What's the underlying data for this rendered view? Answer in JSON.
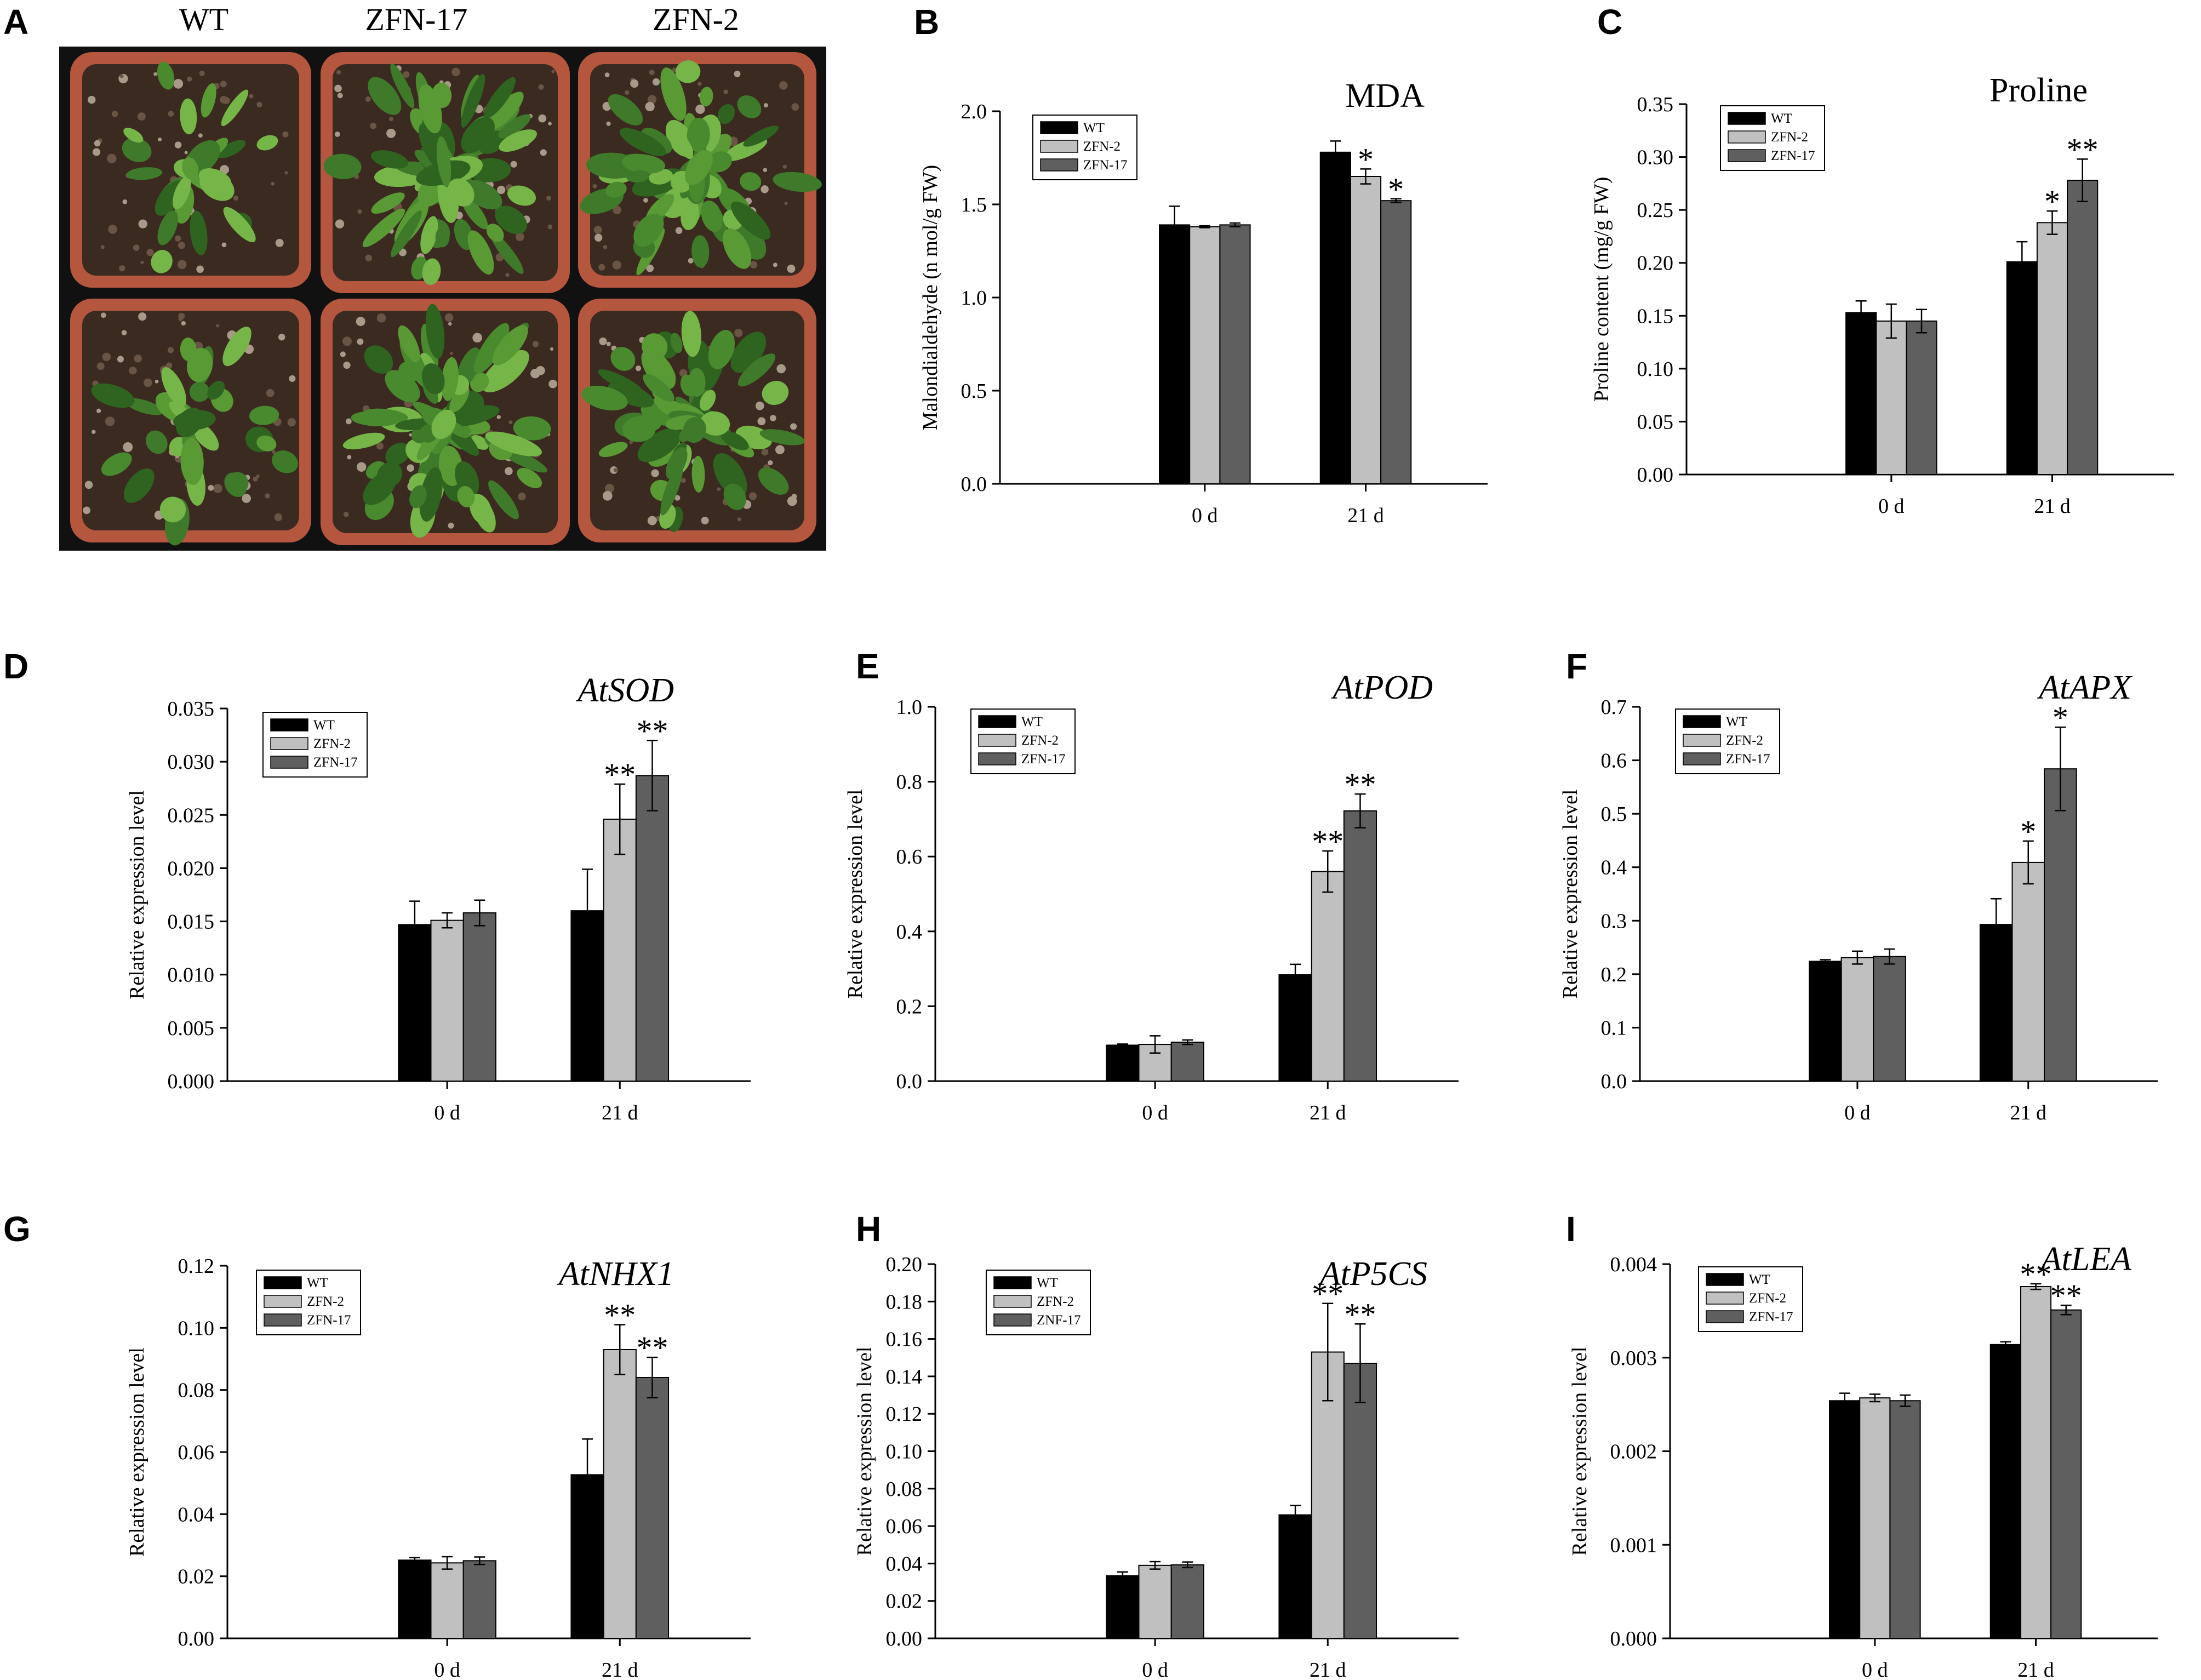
{
  "photo": {
    "panel": "A",
    "labels": [
      "WT",
      "ZFN-17",
      "ZFN-2"
    ]
  },
  "chart_data": [
    {
      "panel": "B",
      "type": "bar",
      "title": "MDA",
      "title_italic": false,
      "xlabel": "",
      "ylabel": "Malondialdehyde (n mol/g FW)",
      "categories": [
        "0 d",
        "21 d"
      ],
      "ylim": [
        0,
        2.0
      ],
      "yticks": [
        "0.0",
        "0.5",
        "1.0",
        "1.5",
        "2.0"
      ],
      "legend_position": "top-left",
      "series": [
        {
          "name": "WT",
          "color": "#000000",
          "values": [
            1.39,
            1.78
          ],
          "errors": [
            0.1,
            0.06
          ],
          "sig": [
            "",
            ""
          ]
        },
        {
          "name": "ZFN-2",
          "color": "#c0c0c0",
          "values": [
            1.38,
            1.65
          ],
          "errors": [
            0.005,
            0.04
          ],
          "sig": [
            "",
            "*"
          ]
        },
        {
          "name": "ZFN-17",
          "color": "#5f5f5f",
          "values": [
            1.39,
            1.52
          ],
          "errors": [
            0.01,
            0.01
          ],
          "sig": [
            "",
            "*"
          ]
        }
      ]
    },
    {
      "panel": "C",
      "type": "bar",
      "title": "Proline",
      "title_italic": false,
      "xlabel": "",
      "ylabel": "Proline content (mg/g FW)",
      "categories": [
        "0 d",
        "21 d"
      ],
      "ylim": [
        0,
        0.35
      ],
      "yticks": [
        "0.00",
        "0.05",
        "0.10",
        "0.15",
        "0.20",
        "0.25",
        "0.30",
        "0.35"
      ],
      "legend_position": "top-left",
      "series": [
        {
          "name": "WT",
          "color": "#000000",
          "values": [
            0.153,
            0.201
          ],
          "errors": [
            0.011,
            0.019
          ],
          "sig": [
            "",
            ""
          ]
        },
        {
          "name": "ZFN-2",
          "color": "#c0c0c0",
          "values": [
            0.145,
            0.238
          ],
          "errors": [
            0.016,
            0.011
          ],
          "sig": [
            "",
            "*"
          ]
        },
        {
          "name": "ZFN-17",
          "color": "#5f5f5f",
          "values": [
            0.145,
            0.278
          ],
          "errors": [
            0.011,
            0.02
          ],
          "sig": [
            "",
            "**"
          ]
        }
      ]
    },
    {
      "panel": "D",
      "type": "bar",
      "title": "AtSOD",
      "title_italic": true,
      "xlabel": "",
      "ylabel": "Relative expression level",
      "categories": [
        "0 d",
        "21 d"
      ],
      "ylim": [
        0,
        0.035
      ],
      "yticks": [
        "0.000",
        "0.005",
        "0.010",
        "0.015",
        "0.020",
        "0.025",
        "0.030",
        "0.035"
      ],
      "legend_position": "top-left",
      "series": [
        {
          "name": "WT",
          "color": "#000000",
          "values": [
            0.0147,
            0.016
          ],
          "errors": [
            0.0022,
            0.0039
          ],
          "sig": [
            "",
            ""
          ]
        },
        {
          "name": "ZFN-2",
          "color": "#c0c0c0",
          "values": [
            0.0151,
            0.0246
          ],
          "errors": [
            0.0007,
            0.0033
          ],
          "sig": [
            "",
            "**"
          ]
        },
        {
          "name": "ZFN-17",
          "color": "#5f5f5f",
          "values": [
            0.0158,
            0.0287
          ],
          "errors": [
            0.0012,
            0.0033
          ],
          "sig": [
            "",
            "**"
          ]
        }
      ]
    },
    {
      "panel": "E",
      "type": "bar",
      "title": "AtPOD",
      "title_italic": true,
      "xlabel": "",
      "ylabel": "Relative expression level",
      "categories": [
        "0 d",
        "21 d"
      ],
      "ylim": [
        0,
        1.0
      ],
      "yticks": [
        "0.0",
        "0.2",
        "0.4",
        "0.6",
        "0.8",
        "1.0"
      ],
      "legend_position": "top-left",
      "series": [
        {
          "name": "WT",
          "color": "#000000",
          "values": [
            0.096,
            0.284
          ],
          "errors": [
            0.003,
            0.028
          ],
          "sig": [
            "",
            ""
          ]
        },
        {
          "name": "ZFN-2",
          "color": "#c0c0c0",
          "values": [
            0.098,
            0.56
          ],
          "errors": [
            0.023,
            0.055
          ],
          "sig": [
            "",
            "**"
          ]
        },
        {
          "name": "ZFN-17",
          "color": "#5f5f5f",
          "values": [
            0.104,
            0.722
          ],
          "errors": [
            0.006,
            0.045
          ],
          "sig": [
            "",
            "**"
          ]
        }
      ]
    },
    {
      "panel": "F",
      "type": "bar",
      "title": "AtAPX",
      "title_italic": true,
      "xlabel": "",
      "ylabel": "Relative expression level",
      "categories": [
        "0 d",
        "21 d"
      ],
      "ylim": [
        0,
        0.7
      ],
      "yticks": [
        "0.0",
        "0.1",
        "0.2",
        "0.3",
        "0.4",
        "0.5",
        "0.6",
        "0.7"
      ],
      "legend_position": "top-left",
      "series": [
        {
          "name": "WT",
          "color": "#000000",
          "values": [
            0.224,
            0.293
          ],
          "errors": [
            0.003,
            0.048
          ],
          "sig": [
            "",
            ""
          ]
        },
        {
          "name": "ZFN-2",
          "color": "#c0c0c0",
          "values": [
            0.231,
            0.409
          ],
          "errors": [
            0.012,
            0.04
          ],
          "sig": [
            "",
            "*"
          ]
        },
        {
          "name": "ZFN-17",
          "color": "#5f5f5f",
          "values": [
            0.233,
            0.584
          ],
          "errors": [
            0.014,
            0.078
          ],
          "sig": [
            "",
            "*"
          ]
        }
      ]
    },
    {
      "panel": "G",
      "type": "bar",
      "title": "AtNHX1",
      "title_italic": true,
      "xlabel": "",
      "ylabel": "Relative expression level",
      "categories": [
        "0 d",
        "21 d"
      ],
      "ylim": [
        0,
        0.12
      ],
      "yticks": [
        "0.00",
        "0.02",
        "0.04",
        "0.06",
        "0.08",
        "0.10",
        "0.12"
      ],
      "legend_position": "top-left",
      "series": [
        {
          "name": "WT",
          "color": "#000000",
          "values": [
            0.0252,
            0.0527
          ],
          "errors": [
            0.0008,
            0.0115
          ],
          "sig": [
            "",
            ""
          ]
        },
        {
          "name": "ZFN-2",
          "color": "#c0c0c0",
          "values": [
            0.0243,
            0.093
          ],
          "errors": [
            0.002,
            0.008
          ],
          "sig": [
            "",
            "**"
          ]
        },
        {
          "name": "ZFN-17",
          "color": "#5f5f5f",
          "values": [
            0.025,
            0.084
          ],
          "errors": [
            0.0012,
            0.0065
          ],
          "sig": [
            "",
            "**"
          ]
        }
      ]
    },
    {
      "panel": "H",
      "type": "bar",
      "title": "AtP5CS",
      "title_italic": true,
      "xlabel": "",
      "ylabel": "Relative expression level",
      "categories": [
        "0 d",
        "21 d"
      ],
      "ylim": [
        0,
        0.2
      ],
      "yticks": [
        "0.00",
        "0.02",
        "0.04",
        "0.06",
        "0.08",
        "0.10",
        "0.12",
        "0.14",
        "0.16",
        "0.18",
        "0.20"
      ],
      "legend_position": "top-left",
      "series": [
        {
          "name": "WT",
          "color": "#000000",
          "values": [
            0.0335,
            0.066
          ],
          "errors": [
            0.002,
            0.005
          ],
          "sig": [
            "",
            ""
          ]
        },
        {
          "name": "ZFN-2",
          "color": "#c0c0c0",
          "values": [
            0.039,
            0.153
          ],
          "errors": [
            0.002,
            0.026
          ],
          "sig": [
            "",
            "**"
          ]
        },
        {
          "name": "ZNF-17",
          "color": "#5f5f5f",
          "values": [
            0.0393,
            0.147
          ],
          "errors": [
            0.0015,
            0.021
          ],
          "sig": [
            "",
            "**"
          ]
        }
      ]
    },
    {
      "panel": "I",
      "type": "bar",
      "title": "AtLEA",
      "title_italic": true,
      "xlabel": "",
      "ylabel": "Relative expression level",
      "categories": [
        "0 d",
        "21 d"
      ],
      "ylim": [
        0,
        0.004
      ],
      "yticks": [
        "0.000",
        "0.001",
        "0.002",
        "0.003",
        "0.004"
      ],
      "legend_position": "top-left",
      "series": [
        {
          "name": "WT",
          "color": "#000000",
          "values": [
            0.00254,
            0.00314
          ],
          "errors": [
            8e-05,
            3e-05
          ],
          "sig": [
            "",
            ""
          ]
        },
        {
          "name": "ZFN-2",
          "color": "#c0c0c0",
          "values": [
            0.00257,
            0.00376
          ],
          "errors": [
            4e-05,
            3e-05
          ],
          "sig": [
            "",
            "**"
          ]
        },
        {
          "name": "ZFN-17",
          "color": "#5f5f5f",
          "values": [
            0.00254,
            0.00351
          ],
          "errors": [
            6e-05,
            5e-05
          ],
          "sig": [
            "",
            "**"
          ]
        }
      ]
    }
  ]
}
